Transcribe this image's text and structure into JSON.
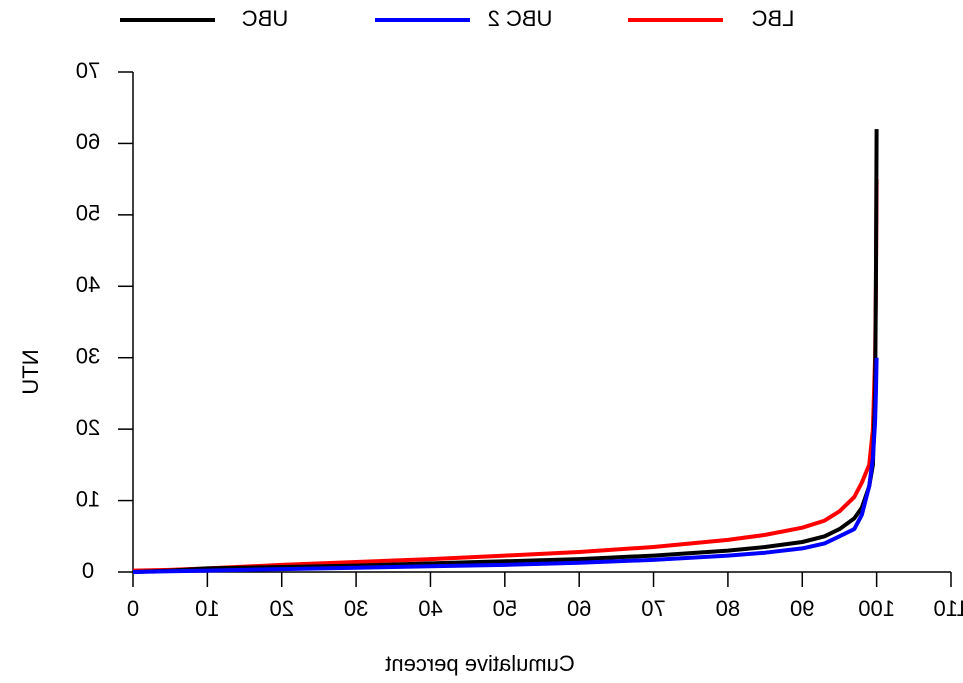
{
  "chart_data": {
    "type": "line",
    "x_label": "Cumulative percent",
    "y_label": "NTU",
    "x": [
      0,
      5,
      10,
      20,
      30,
      40,
      50,
      60,
      70,
      80,
      85,
      90,
      93,
      95,
      97,
      98,
      99,
      99.5,
      99.8,
      99.9,
      100
    ],
    "series": [
      {
        "name": "UBC",
        "color": "#000000",
        "values": [
          0,
          0.2,
          0.5,
          0.7,
          0.9,
          1.2,
          1.5,
          1.8,
          2.3,
          3,
          3.5,
          4.2,
          5,
          6,
          7.5,
          9,
          12,
          15,
          25,
          40,
          62
        ]
      },
      {
        "name": "UBC 2",
        "color": "#0000ff",
        "values": [
          0,
          0.1,
          0.2,
          0.4,
          0.6,
          0.8,
          1,
          1.3,
          1.7,
          2.3,
          2.7,
          3.3,
          4,
          5,
          6,
          8,
          12,
          16,
          21,
          25,
          30
        ]
      },
      {
        "name": "LBC",
        "color": "#ff0000",
        "values": [
          0.2,
          0.3,
          0.5,
          1,
          1.4,
          1.8,
          2.3,
          2.8,
          3.5,
          4.5,
          5.2,
          6.2,
          7.2,
          8.5,
          10.5,
          12.5,
          15,
          20,
          30,
          40,
          55
        ]
      }
    ],
    "xlim": [
      0,
      110
    ],
    "xticks": [
      0,
      10,
      20,
      30,
      40,
      50,
      60,
      70,
      80,
      90,
      100,
      110
    ],
    "ylim": [
      0,
      70
    ],
    "yticks": [
      0,
      10,
      20,
      30,
      40,
      50,
      60,
      70
    ],
    "mirrored_text": true
  }
}
